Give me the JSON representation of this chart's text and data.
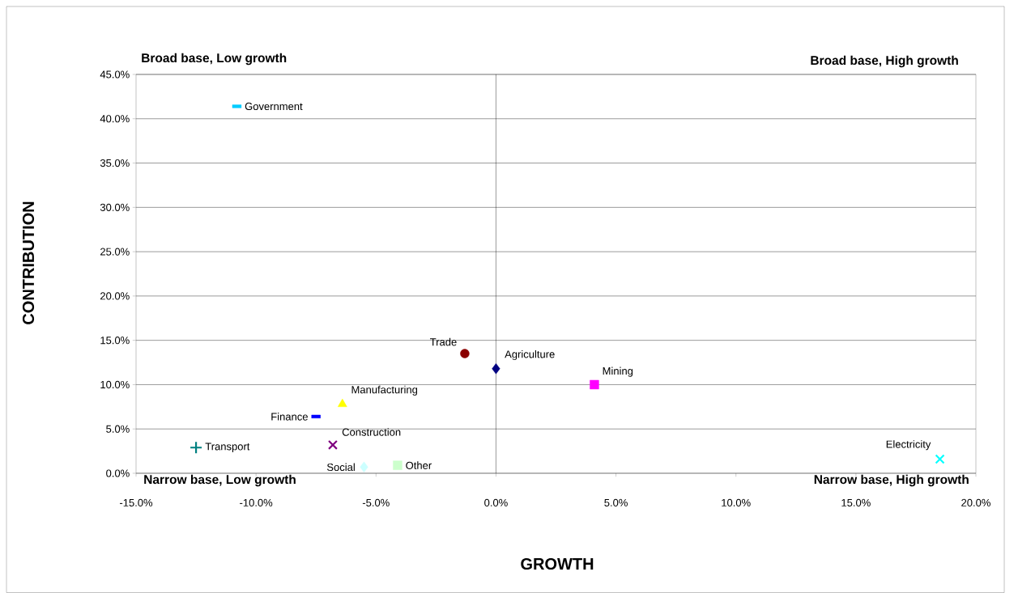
{
  "chart_data": {
    "type": "scatter",
    "xlabel": "GROWTH",
    "ylabel": "CONTRIBUTION",
    "annotations": [
      "Broad base, Low growth",
      "Broad base, High growth",
      "Narrow base, Low growth",
      "Narrow base, High growth"
    ],
    "xlim": [
      -15,
      20
    ],
    "ylim": [
      0,
      45
    ],
    "xticks": [
      {
        "value": -15,
        "label": "-15.0%"
      },
      {
        "value": -10,
        "label": "-10.0%"
      },
      {
        "value": -5,
        "label": "-5.0%"
      },
      {
        "value": 0,
        "label": "0.0%"
      },
      {
        "value": 5,
        "label": "5.0%"
      },
      {
        "value": 10,
        "label": "10.0%"
      },
      {
        "value": 15,
        "label": "15.0%"
      },
      {
        "value": 20,
        "label": "20.0%"
      }
    ],
    "yticks": [
      {
        "value": 0,
        "label": "0.0%"
      },
      {
        "value": 5,
        "label": "5.0%"
      },
      {
        "value": 10,
        "label": "10.0%"
      },
      {
        "value": 15,
        "label": "15.0%"
      },
      {
        "value": 20,
        "label": "20.0%"
      },
      {
        "value": 25,
        "label": "25.0%"
      },
      {
        "value": 30,
        "label": "30.0%"
      },
      {
        "value": 35,
        "label": "35.0%"
      },
      {
        "value": 40,
        "label": "40.0%"
      },
      {
        "value": 45,
        "label": "45.0%"
      }
    ],
    "grid": "y",
    "ref_lines": [
      {
        "axis": "x",
        "value": 0,
        "color": "#000000"
      }
    ],
    "series": [
      {
        "name": "Government",
        "color": "#00ccff",
        "marker": "square",
        "x": [
          -10.8
        ],
        "values": [
          41.4
        ]
      },
      {
        "name": "Trade",
        "color": "#8b0000",
        "marker": "circle",
        "x": [
          -1.3
        ],
        "values": [
          13.5
        ]
      },
      {
        "name": "Agriculture",
        "color": "#000080",
        "marker": "diamond",
        "x": [
          0.0
        ],
        "values": [
          11.8
        ]
      },
      {
        "name": "Mining",
        "color": "#ff00ff",
        "marker": "square",
        "x": [
          4.1
        ],
        "values": [
          10.0
        ]
      },
      {
        "name": "Manufacturing",
        "color": "#ffff00",
        "marker": "triangle",
        "x": [
          -6.4
        ],
        "values": [
          7.8
        ]
      },
      {
        "name": "Finance",
        "color": "#0000ff",
        "marker": "square",
        "x": [
          -7.5
        ],
        "values": [
          6.4
        ]
      },
      {
        "name": "Transport",
        "color": "#008080",
        "marker": "plus",
        "x": [
          -12.5
        ],
        "values": [
          2.9
        ]
      },
      {
        "name": "Construction",
        "color": "#800080",
        "marker": "cross",
        "x": [
          -6.8
        ],
        "values": [
          3.2
        ]
      },
      {
        "name": "Social",
        "color": "#ccffff",
        "marker": "diamond",
        "x": [
          -5.5
        ],
        "values": [
          0.7
        ]
      },
      {
        "name": "Other",
        "color": "#ccffcc",
        "marker": "square",
        "x": [
          -4.1
        ],
        "values": [
          0.9
        ]
      },
      {
        "name": "Electricity",
        "color": "#00ffff",
        "marker": "cross",
        "x": [
          18.5
        ],
        "values": [
          1.6
        ]
      }
    ]
  }
}
